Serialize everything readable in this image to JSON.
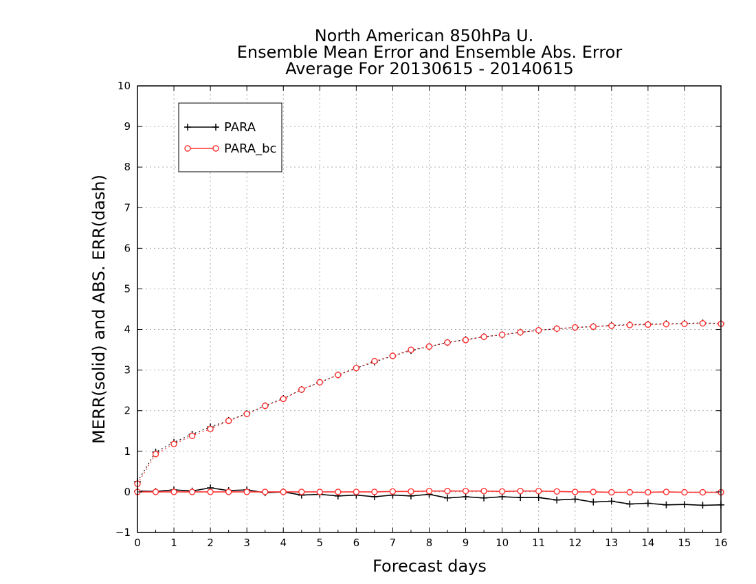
{
  "chart_data": {
    "type": "line",
    "title_lines": [
      "North American 850hPa U.",
      "Ensemble Mean Error and Ensemble Abs. Error",
      "Average For 20130615 - 20140615"
    ],
    "xlabel": "Forecast days",
    "ylabel": "MERR(solid) and ABS. ERR(dash)",
    "xlim": [
      0,
      16
    ],
    "ylim": [
      -1,
      10
    ],
    "xticks": [
      0,
      1,
      2,
      3,
      4,
      5,
      6,
      7,
      8,
      9,
      10,
      11,
      12,
      13,
      14,
      15,
      16
    ],
    "yticks": [
      -1,
      0,
      1,
      2,
      3,
      4,
      5,
      6,
      7,
      8,
      9,
      10
    ],
    "grid": true,
    "legend_position": "top-left",
    "legend": [
      {
        "label": "PARA",
        "color": "#000000",
        "marker": "plus"
      },
      {
        "label": "PARA_bc",
        "color": "#ff3030",
        "marker": "circle"
      }
    ],
    "x": [
      0,
      0.5,
      1,
      1.5,
      2,
      2.5,
      3,
      3.5,
      4,
      4.5,
      5,
      5.5,
      6,
      6.5,
      7,
      7.5,
      8,
      8.5,
      9,
      9.5,
      10,
      10.5,
      11,
      11.5,
      12,
      12.5,
      13,
      13.5,
      14,
      14.5,
      15,
      15.5,
      16
    ],
    "series": [
      {
        "label": "PARA",
        "kind": "mean_error",
        "style": "solid",
        "color": "#000000",
        "marker": "plus",
        "values": [
          0.02,
          0.01,
          0.05,
          0.02,
          0.1,
          0.03,
          0.05,
          -0.02,
          0.0,
          -0.08,
          -0.06,
          -0.1,
          -0.08,
          -0.12,
          -0.08,
          -0.1,
          -0.06,
          -0.15,
          -0.12,
          -0.15,
          -0.12,
          -0.14,
          -0.14,
          -0.2,
          -0.18,
          -0.25,
          -0.23,
          -0.3,
          -0.28,
          -0.32,
          -0.31,
          -0.33,
          -0.32
        ]
      },
      {
        "label": "PARA_bc",
        "kind": "mean_error",
        "style": "solid",
        "color": "#ff3030",
        "marker": "circle",
        "values": [
          0.0,
          0.0,
          0.0,
          0.0,
          0.0,
          0.0,
          0.0,
          0.0,
          0.0,
          0.0,
          0.0,
          0.0,
          0.0,
          0.0,
          0.01,
          0.01,
          0.02,
          0.02,
          0.02,
          0.02,
          0.01,
          0.02,
          0.02,
          0.01,
          0.0,
          0.0,
          -0.01,
          -0.01,
          -0.01,
          0.0,
          -0.01,
          -0.01,
          -0.01
        ]
      },
      {
        "label": "PARA",
        "kind": "abs_error",
        "style": "dotted",
        "color": "#000000",
        "marker": "plus",
        "values": [
          0.25,
          0.98,
          1.22,
          1.42,
          1.6,
          1.76,
          1.93,
          2.12,
          2.3,
          2.52,
          2.7,
          2.88,
          3.05,
          3.2,
          3.35,
          3.48,
          3.58,
          3.68,
          3.75,
          3.82,
          3.87,
          3.93,
          3.98,
          4.02,
          4.05,
          4.07,
          4.1,
          4.12,
          4.13,
          4.14,
          4.15,
          4.16,
          4.15
        ]
      },
      {
        "label": "PARA_bc",
        "kind": "abs_error",
        "style": "dotted",
        "color": "#ff3030",
        "marker": "circle",
        "values": [
          0.2,
          0.93,
          1.18,
          1.38,
          1.55,
          1.75,
          1.92,
          2.12,
          2.29,
          2.52,
          2.7,
          2.88,
          3.05,
          3.22,
          3.35,
          3.5,
          3.58,
          3.68,
          3.74,
          3.82,
          3.87,
          3.93,
          3.98,
          4.02,
          4.05,
          4.07,
          4.09,
          4.11,
          4.12,
          4.13,
          4.14,
          4.15,
          4.14
        ]
      }
    ]
  }
}
